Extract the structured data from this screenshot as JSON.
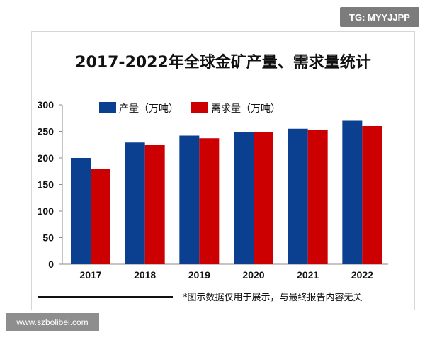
{
  "badges": {
    "top_right": "TG: MYYJJPP",
    "bottom_left": "www.szbolibei.com"
  },
  "footnote": "*图示数据仅用于展示，与最终报告内容无关",
  "colors": {
    "production": "#0b3f8f",
    "demand": "#cc0000"
  },
  "chart_data": {
    "type": "bar",
    "title": "2017-2022年全球金矿产量、需求量统计",
    "xlabel": "",
    "ylabel": "",
    "categories": [
      "2017",
      "2018",
      "2019",
      "2020",
      "2021",
      "2022"
    ],
    "series": [
      {
        "name": "产量（万吨）",
        "values": [
          200,
          229,
          242,
          249,
          255,
          270
        ]
      },
      {
        "name": "需求量（万吨）",
        "values": [
          180,
          225,
          237,
          248,
          253,
          260
        ]
      }
    ],
    "ylim": [
      0,
      300
    ],
    "yticks": [
      0,
      50,
      100,
      150,
      200,
      250,
      300
    ],
    "grid": false,
    "legend_position": "top-left"
  }
}
